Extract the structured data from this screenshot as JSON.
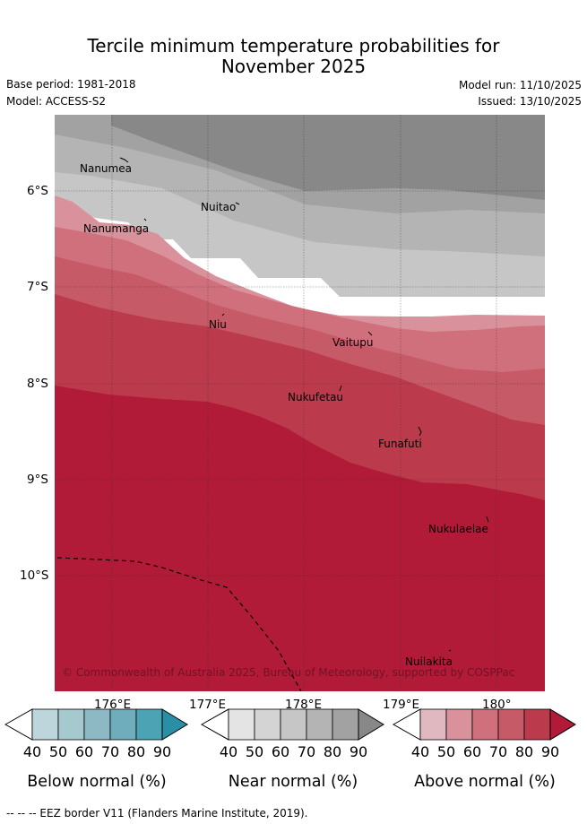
{
  "title": {
    "line1": "Tercile minimum temperature probabilities for",
    "line2": "November 2025"
  },
  "meta": {
    "base_period": "Base period: 1981-2018",
    "model": "Model: ACCESS-S2",
    "model_run": "Model run: 11/10/2025",
    "issued": "Issued: 13/10/2025"
  },
  "map": {
    "lat_labels": [
      "6°S",
      "7°S",
      "8°S",
      "9°S",
      "10°S"
    ],
    "lon_labels": [
      "176°E",
      "177°E",
      "178°E",
      "179°E",
      "180°"
    ],
    "places": [
      "Nanumea",
      "Nuitao",
      "Nanumanga",
      "Niu",
      "Vaitupu",
      "Nukufetau",
      "Funafuti",
      "Nukulaelae",
      "Nuilakita"
    ],
    "copyright": "© Commonwealth of Australia 2025, Bureau of Meteorology, supported by COSPPac",
    "colors": {
      "near60": "#c6c6c6",
      "near70": "#b4b4b4",
      "near80": "#a2a2a2",
      "near90": "#888888",
      "above40": "#e0b8c0",
      "above50": "#d9929c",
      "above60": "#d0707c",
      "above70": "#c75a67",
      "above80": "#bb3a4c",
      "above90": "#b11b37"
    }
  },
  "colorbars": [
    {
      "label": "Below normal (%)",
      "ticks": [
        "40",
        "50",
        "60",
        "70",
        "80",
        "90"
      ],
      "colors": [
        "#bdd6dc",
        "#a6c9cf",
        "#8cb9c4",
        "#6fadbd",
        "#4ba3b3",
        "#2a8ea5"
      ]
    },
    {
      "label": "Near normal (%)",
      "ticks": [
        "40",
        "50",
        "60",
        "70",
        "80",
        "90"
      ],
      "colors": [
        "#e4e4e4",
        "#d4d4d4",
        "#c6c6c6",
        "#b4b4b4",
        "#a2a2a2",
        "#888888"
      ]
    },
    {
      "label": "Above normal (%)",
      "ticks": [
        "40",
        "50",
        "60",
        "70",
        "80",
        "90"
      ],
      "colors": [
        "#e0b8c0",
        "#d9929c",
        "#d0707c",
        "#c75a67",
        "#bb3a4c",
        "#b11b37"
      ]
    }
  ],
  "footer": {
    "eez": "--  --  -- EEZ border V11 (Flanders Marine Institute, 2019)."
  }
}
